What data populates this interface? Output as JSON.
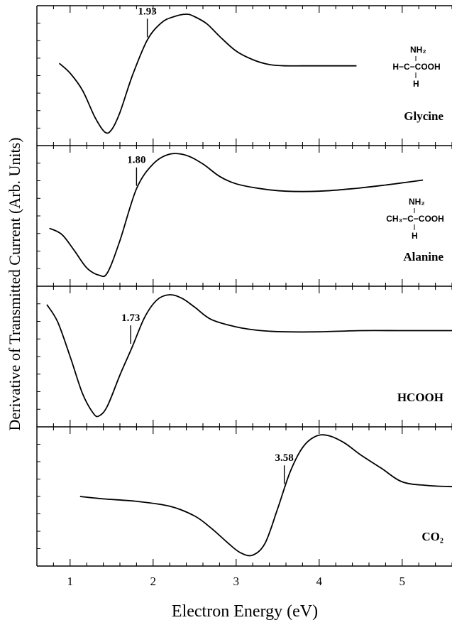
{
  "chart_data": {
    "type": "line",
    "xlabel": "Electron Energy (eV)",
    "ylabel": "Derivative of Transmitted Current (Arb. Units)",
    "xlim": [
      0.6,
      5.6
    ],
    "xticks": [
      1,
      2,
      3,
      4,
      5
    ],
    "x_minor_step": 0.2,
    "grid": false,
    "panels": [
      {
        "name": "Glycine",
        "ylim": [
          0,
          1
        ],
        "structure": {
          "top": "NH₂",
          "middle": "H−C−COOH",
          "bottom": "H"
        },
        "annotation": {
          "label": "1.93",
          "x": 1.93,
          "y": 0.79
        },
        "x": [
          0.87,
          1.0,
          1.15,
          1.3,
          1.42,
          1.5,
          1.6,
          1.75,
          1.93,
          2.1,
          2.25,
          2.4,
          2.5,
          2.65,
          2.8,
          3.0,
          3.2,
          3.4,
          3.6,
          3.8,
          4.0,
          4.2,
          4.45
        ],
        "y": [
          0.6,
          0.52,
          0.38,
          0.16,
          0.04,
          0.06,
          0.2,
          0.5,
          0.79,
          0.93,
          0.98,
          1.0,
          0.98,
          0.92,
          0.82,
          0.7,
          0.63,
          0.59,
          0.58,
          0.58,
          0.58,
          0.58,
          0.58
        ]
      },
      {
        "name": "Alanine",
        "ylim": [
          0,
          1
        ],
        "structure": {
          "top": "NH₂",
          "middle": "CH₃−C−COOH",
          "bottom": "H"
        },
        "annotation": {
          "label": "1.80",
          "x": 1.8,
          "y": 0.72
        },
        "x": [
          0.75,
          0.9,
          1.05,
          1.2,
          1.35,
          1.45,
          1.6,
          1.8,
          2.0,
          2.2,
          2.4,
          2.6,
          2.8,
          3.0,
          3.3,
          3.6,
          4.0,
          4.4,
          4.8,
          5.25
        ],
        "y": [
          0.4,
          0.35,
          0.22,
          0.08,
          0.02,
          0.04,
          0.3,
          0.72,
          0.92,
          1.0,
          0.99,
          0.92,
          0.82,
          0.76,
          0.72,
          0.7,
          0.7,
          0.72,
          0.75,
          0.79
        ]
      },
      {
        "name": "HCOOH",
        "ylim": [
          0,
          1
        ],
        "annotation": {
          "label": "1.73",
          "x": 1.73,
          "y": 0.58
        },
        "x": [
          0.72,
          0.85,
          1.0,
          1.15,
          1.28,
          1.35,
          1.45,
          1.6,
          1.75,
          1.9,
          2.05,
          2.2,
          2.35,
          2.5,
          2.7,
          3.0,
          3.3,
          3.6,
          4.0,
          4.5,
          5.0,
          5.6
        ],
        "y": [
          0.92,
          0.78,
          0.5,
          0.2,
          0.04,
          0.02,
          0.1,
          0.35,
          0.58,
          0.82,
          0.96,
          1.0,
          0.97,
          0.9,
          0.8,
          0.74,
          0.71,
          0.7,
          0.7,
          0.71,
          0.71,
          0.71
        ]
      },
      {
        "name": "CO₂",
        "ylim": [
          0,
          1
        ],
        "annotation": {
          "label": "3.58",
          "x": 3.58,
          "y": 0.58
        },
        "x": [
          1.12,
          1.4,
          1.8,
          2.2,
          2.5,
          2.7,
          2.9,
          3.05,
          3.2,
          3.35,
          3.5,
          3.65,
          3.8,
          3.95,
          4.1,
          4.3,
          4.5,
          4.75,
          5.0,
          5.3,
          5.6
        ],
        "y": [
          0.5,
          0.48,
          0.46,
          0.42,
          0.34,
          0.24,
          0.12,
          0.04,
          0.02,
          0.12,
          0.4,
          0.7,
          0.9,
          0.99,
          1.0,
          0.94,
          0.84,
          0.73,
          0.62,
          0.59,
          0.58
        ]
      }
    ]
  }
}
